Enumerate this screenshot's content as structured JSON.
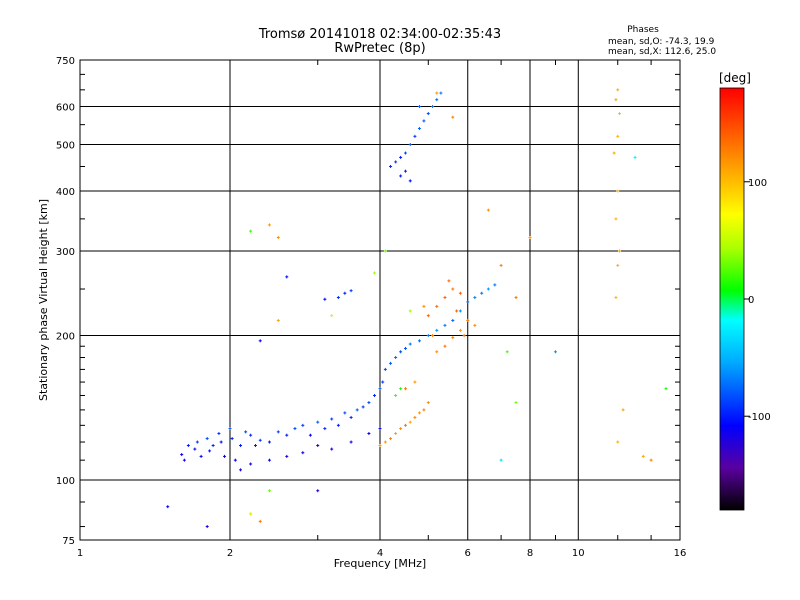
{
  "chart_data": {
    "type": "scatter",
    "title": "Tromsø 20141018 02:34:00-02:35:43",
    "subtitle": "RwPretec (8p)",
    "xlabel": "Frequency [MHz]",
    "ylabel": "Stationary phase Virtual Height [km]",
    "x_scale": "log",
    "y_scale": "log",
    "xlim": [
      1,
      16
    ],
    "ylim": [
      75,
      750
    ],
    "x_ticks": [
      1,
      2,
      4,
      6,
      8,
      10,
      16
    ],
    "y_ticks": [
      75,
      100,
      200,
      300,
      400,
      500,
      600,
      750
    ],
    "grid": true,
    "phase_box": {
      "title": "Phases",
      "line_o": "mean, sd,O: -74.3, 19.9",
      "line_x": "mean, sd,X: 112.6, 25.0"
    },
    "colorbar": {
      "label": "[deg]",
      "range": [
        -180,
        180
      ],
      "ticks": [
        100,
        0,
        -100
      ],
      "colormap": "rainbow"
    },
    "series": [
      {
        "points": [
          [
            1.6,
            113,
            -110
          ],
          [
            1.62,
            110,
            -115
          ],
          [
            1.65,
            118,
            -100
          ],
          [
            1.7,
            116,
            -105
          ],
          [
            1.72,
            120,
            -90
          ],
          [
            1.75,
            112,
            -110
          ],
          [
            1.8,
            122,
            -85
          ],
          [
            1.82,
            115,
            -100
          ],
          [
            1.85,
            118,
            -95
          ],
          [
            1.9,
            125,
            -90
          ],
          [
            1.92,
            120,
            -105
          ],
          [
            1.95,
            112,
            -115
          ],
          [
            2.0,
            128,
            -80
          ],
          [
            2.02,
            122,
            -95
          ],
          [
            2.05,
            110,
            -110
          ],
          [
            2.1,
            118,
            -100
          ],
          [
            2.15,
            126,
            -85
          ],
          [
            2.2,
            124,
            -95
          ],
          [
            2.25,
            118,
            -100
          ],
          [
            2.3,
            121,
            -90
          ],
          [
            2.4,
            120,
            -100
          ],
          [
            2.5,
            126,
            -90
          ],
          [
            2.6,
            124,
            -100
          ],
          [
            2.7,
            128,
            -85
          ],
          [
            2.8,
            130,
            -90
          ],
          [
            2.9,
            124,
            -110
          ],
          [
            3.0,
            132,
            -80
          ],
          [
            3.1,
            128,
            -95
          ],
          [
            3.2,
            134,
            -90
          ],
          [
            3.3,
            130,
            -100
          ],
          [
            3.4,
            138,
            -85
          ],
          [
            3.5,
            135,
            -95
          ],
          [
            3.6,
            140,
            -80
          ],
          [
            3.7,
            142,
            -90
          ],
          [
            3.8,
            145,
            -85
          ],
          [
            3.9,
            150,
            -95
          ],
          [
            4.0,
            155,
            -80
          ],
          [
            4.05,
            160,
            -90
          ],
          [
            4.1,
            170,
            -85
          ],
          [
            4.2,
            175,
            -80
          ],
          [
            4.3,
            180,
            -75
          ],
          [
            4.4,
            185,
            -85
          ],
          [
            4.5,
            188,
            -80
          ],
          [
            4.6,
            192,
            -70
          ],
          [
            4.8,
            195,
            -75
          ],
          [
            5.0,
            200,
            -70
          ],
          [
            5.2,
            205,
            -60
          ],
          [
            5.4,
            210,
            -70
          ],
          [
            5.6,
            215,
            -75
          ],
          [
            5.8,
            225,
            -60
          ],
          [
            6.0,
            235,
            -70
          ],
          [
            6.2,
            240,
            -65
          ],
          [
            6.4,
            245,
            -70
          ],
          [
            6.6,
            250,
            -60
          ],
          [
            6.8,
            255,
            -70
          ],
          [
            3.0,
            118,
            -120
          ],
          [
            3.2,
            116,
            -115
          ],
          [
            3.5,
            120,
            -110
          ],
          [
            3.8,
            125,
            -115
          ],
          [
            4.0,
            128,
            -105
          ],
          [
            2.1,
            105,
            -120
          ],
          [
            2.2,
            108,
            -115
          ],
          [
            2.4,
            110,
            -110
          ],
          [
            2.6,
            112,
            -118
          ],
          [
            2.8,
            114,
            -112
          ],
          [
            3.3,
            240,
            -95
          ],
          [
            3.4,
            245,
            -100
          ],
          [
            3.5,
            248,
            -90
          ],
          [
            3.1,
            238,
            -105
          ],
          [
            4.2,
            450,
            -95
          ],
          [
            4.3,
            460,
            -90
          ],
          [
            4.4,
            470,
            -100
          ],
          [
            4.5,
            480,
            -85
          ],
          [
            4.6,
            500,
            -80
          ],
          [
            4.7,
            520,
            -90
          ],
          [
            4.8,
            540,
            -75
          ],
          [
            4.9,
            560,
            -80
          ],
          [
            5.0,
            580,
            -85
          ],
          [
            5.1,
            600,
            -70
          ],
          [
            5.2,
            620,
            -75
          ],
          [
            4.4,
            430,
            -100
          ],
          [
            4.5,
            440,
            -95
          ],
          [
            4.8,
            600,
            -80
          ],
          [
            5.3,
            640,
            -70
          ],
          [
            4.6,
            420,
            -105
          ],
          [
            1.5,
            88,
            -110
          ],
          [
            1.8,
            80,
            -120
          ],
          [
            2.3,
            195,
            -110
          ],
          [
            3.0,
            95,
            -120
          ],
          [
            2.6,
            265,
            -105
          ]
        ]
      },
      {
        "points": [
          [
            4.0,
            118,
            120
          ],
          [
            4.1,
            120,
            115
          ],
          [
            4.2,
            122,
            125
          ],
          [
            4.3,
            125,
            110
          ],
          [
            4.4,
            128,
            120
          ],
          [
            4.5,
            130,
            130
          ],
          [
            4.6,
            132,
            110
          ],
          [
            4.7,
            135,
            120
          ],
          [
            4.8,
            138,
            115
          ],
          [
            4.9,
            140,
            125
          ],
          [
            5.0,
            145,
            120
          ],
          [
            4.5,
            155,
            130
          ],
          [
            4.7,
            160,
            115
          ],
          [
            5.2,
            185,
            120
          ],
          [
            5.4,
            190,
            130
          ],
          [
            5.6,
            198,
            125
          ],
          [
            5.8,
            205,
            115
          ],
          [
            5.0,
            220,
            140
          ],
          [
            5.2,
            230,
            135
          ],
          [
            5.4,
            240,
            140
          ],
          [
            5.6,
            250,
            130
          ],
          [
            5.8,
            245,
            140
          ],
          [
            6.0,
            215,
            125
          ],
          [
            6.2,
            210,
            120
          ],
          [
            5.5,
            260,
            135
          ],
          [
            5.7,
            225,
            140
          ],
          [
            5.1,
            200,
            125
          ],
          [
            5.9,
            200,
            130
          ],
          [
            4.9,
            230,
            120
          ],
          [
            12.0,
            650,
            105
          ],
          [
            11.9,
            620,
            110
          ],
          [
            12.1,
            580,
            100
          ],
          [
            12.0,
            520,
            105
          ],
          [
            11.8,
            480,
            110
          ],
          [
            12.0,
            400,
            100
          ],
          [
            11.9,
            350,
            105
          ],
          [
            12.1,
            300,
            110
          ],
          [
            12.0,
            280,
            105
          ],
          [
            11.9,
            240,
            100
          ],
          [
            12.0,
            120,
            105
          ],
          [
            12.3,
            140,
            110
          ],
          [
            2.4,
            340,
            115
          ],
          [
            2.5,
            320,
            120
          ],
          [
            2.5,
            215,
            110
          ],
          [
            2.2,
            85,
            125
          ],
          [
            2.3,
            82,
            130
          ],
          [
            6.6,
            365,
            120
          ],
          [
            7.0,
            280,
            125
          ],
          [
            7.5,
            240,
            130
          ],
          [
            8.0,
            320,
            120
          ],
          [
            14.0,
            110,
            125
          ],
          [
            13.5,
            112,
            110
          ],
          [
            5.2,
            640,
            115
          ],
          [
            5.6,
            570,
            125
          ]
        ]
      },
      {
        "points": [
          [
            4.3,
            150,
            20
          ],
          [
            4.4,
            155,
            10
          ],
          [
            3.9,
            270,
            40
          ],
          [
            4.1,
            300,
            30
          ],
          [
            2.2,
            330,
            20
          ],
          [
            2.4,
            95,
            30
          ],
          [
            2.2,
            85,
            60
          ],
          [
            7.2,
            185,
            20
          ],
          [
            7.5,
            145,
            30
          ],
          [
            15.0,
            155,
            10
          ],
          [
            3.2,
            220,
            50
          ],
          [
            4.6,
            225,
            40
          ],
          [
            13.0,
            470,
            -20
          ],
          [
            7.0,
            110,
            -30
          ],
          [
            9.0,
            185,
            -60
          ]
        ]
      }
    ]
  }
}
